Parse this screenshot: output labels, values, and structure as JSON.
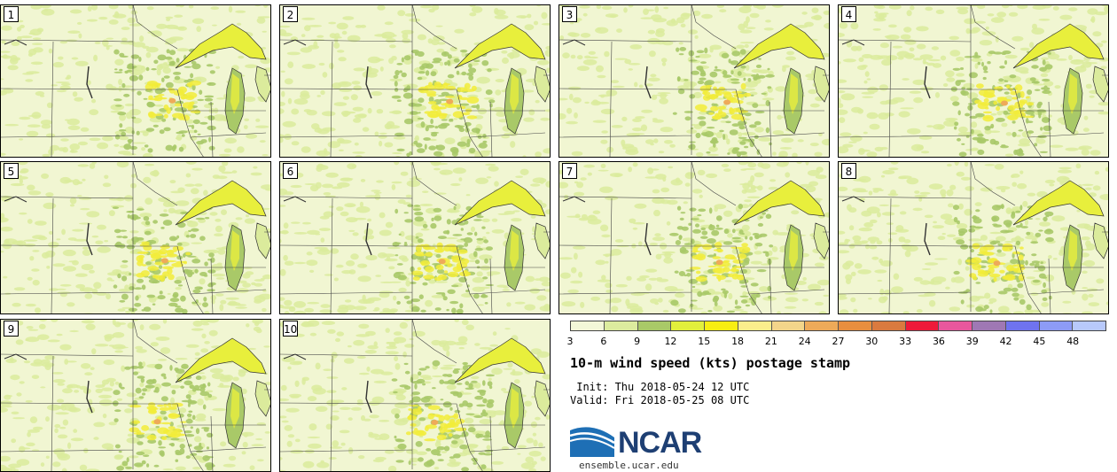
{
  "panels": [
    {
      "label": "1"
    },
    {
      "label": "2"
    },
    {
      "label": "3"
    },
    {
      "label": "4"
    },
    {
      "label": "5"
    },
    {
      "label": "6"
    },
    {
      "label": "7"
    },
    {
      "label": "8"
    },
    {
      "label": "9"
    },
    {
      "label": "10"
    }
  ],
  "colorbar": {
    "ticks": [
      "3",
      "6",
      "9",
      "12",
      "15",
      "18",
      "21",
      "24",
      "27",
      "30",
      "33",
      "36",
      "39",
      "42",
      "45",
      "48"
    ],
    "colors": [
      "#f3f7d8",
      "#dcec9e",
      "#a9c968",
      "#e2ef3c",
      "#f8ee12",
      "#fbee8c",
      "#f3d58a",
      "#eeaa59",
      "#e98e3e",
      "#da7a3f",
      "#ee1a3a",
      "#e9579d",
      "#9f78b4",
      "#6f73ef",
      "#8d9bf6",
      "#b8c9fb"
    ]
  },
  "title": "10-m wind speed (kts) postage stamp",
  "init": " Init: Thu 2018-05-24 12 UTC",
  "valid": "Valid: Fri 2018-05-25 08 UTC",
  "logo": {
    "name": "NCAR",
    "site": "ensemble.ucar.edu",
    "color": "#1e3f73"
  }
}
